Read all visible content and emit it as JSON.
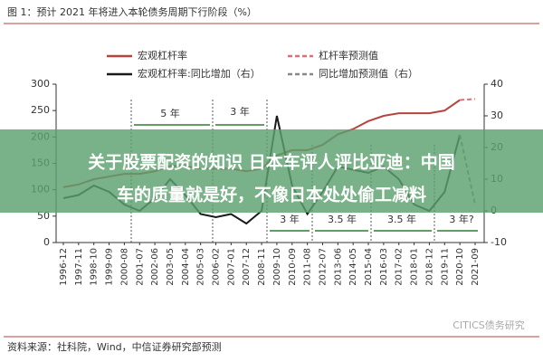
{
  "chart_data": {
    "type": "line",
    "title": "图 1：预计 2021 年将进入本轮债务周期下行阶段（%）",
    "source": "资料来源：社科院，Wind，中信证券研究部预测",
    "watermark": "CITICS债务研究",
    "banner": [
      "关于股票配资的知识 日本车评人评比亚迪：中国",
      "车的质量就是好，不像日本处处偷工减料"
    ],
    "categories": [
      "1996-12",
      "1997-11",
      "1998-10",
      "1999-09",
      "2000-08",
      "2001-07",
      "2002-06",
      "2003-05",
      "2004-04",
      "2005-03",
      "2006-02",
      "2007-01",
      "2007-12",
      "2008-11",
      "2009-10",
      "2010-09",
      "2011-08",
      "2012-07",
      "2013-06",
      "2014-05",
      "2015-04",
      "2016-03",
      "2017-02",
      "2018-01",
      "2018-12",
      "2019-11",
      "2020-10",
      "2021-09"
    ],
    "series": [
      {
        "name": "宏观杠杆率",
        "color": "#b5443f",
        "dash": false,
        "values": [
          105,
          110,
          120,
          125,
          130,
          130,
          135,
          145,
          145,
          140,
          140,
          140,
          135,
          140,
          165,
          175,
          175,
          185,
          205,
          215,
          230,
          240,
          245,
          245,
          245,
          250,
          270,
          null
        ]
      },
      {
        "name": "杠杆率预测值",
        "color": "#d9707a",
        "dash": true,
        "values": [
          null,
          null,
          null,
          null,
          null,
          null,
          null,
          null,
          null,
          null,
          null,
          null,
          null,
          null,
          null,
          null,
          null,
          null,
          null,
          null,
          null,
          null,
          null,
          null,
          null,
          null,
          270,
          272
        ]
      },
      {
        "name": "宏观杠杆率:同比增加（右）",
        "color": "#1a1a1a",
        "dash": false,
        "axis": "y2",
        "values": [
          4,
          5,
          8,
          6,
          2,
          0,
          4,
          10,
          5,
          -1,
          -2,
          -1,
          -4,
          0,
          30,
          8,
          -1,
          6,
          14,
          13,
          12,
          14,
          10,
          2,
          0,
          6,
          24,
          null
        ]
      },
      {
        "name": "同比增加预测值（右）",
        "color": "#888888",
        "dash": true,
        "axis": "y2",
        "values": [
          null,
          null,
          null,
          null,
          null,
          null,
          null,
          null,
          null,
          null,
          null,
          null,
          null,
          null,
          null,
          null,
          null,
          null,
          null,
          null,
          null,
          null,
          null,
          null,
          null,
          null,
          24,
          2
        ]
      }
    ],
    "ylim": [
      0,
      300
    ],
    "yticks": [
      0,
      50,
      100,
      150,
      200,
      250,
      300
    ],
    "y2lim": [
      -10,
      40
    ],
    "y2ticks": [
      -10,
      0,
      10,
      20,
      30,
      40
    ],
    "annotations": [
      "5 年",
      "3 年",
      "3 年",
      "3.5 年",
      "3.5 年",
      "3 年?"
    ]
  }
}
